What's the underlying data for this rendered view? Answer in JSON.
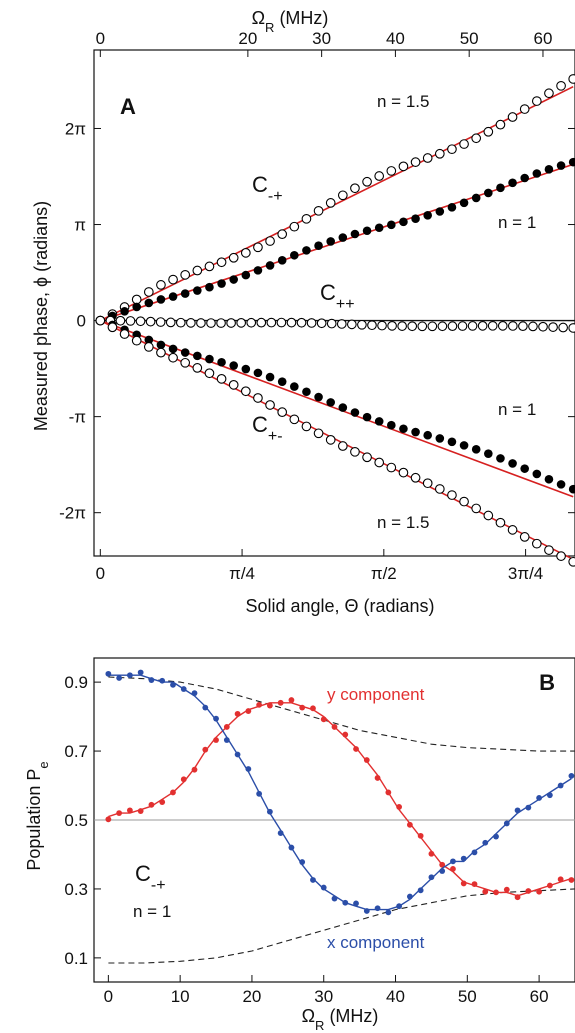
{
  "chart_data": [
    {
      "panel": "A",
      "type": "scatter",
      "top_axis": {
        "label": "Ω_R (MHz)",
        "ticks": [
          {
            "value": 0,
            "label": "0"
          },
          {
            "value": 20,
            "label": "20"
          },
          {
            "value": 30,
            "label": "30"
          },
          {
            "value": 40,
            "label": "40"
          },
          {
            "value": 50,
            "label": "50"
          },
          {
            "value": 60,
            "label": "60"
          }
        ]
      },
      "xlabel": "Solid angle, Θ  (radians)",
      "ylabel": "Measured phase, ϕ  (radians)",
      "xlim": [
        -0.035,
        2.63
      ],
      "ylim": [
        -7.7,
        8.85
      ],
      "x_ticks": [
        {
          "value": 0,
          "label": "0"
        },
        {
          "value": 0.7854,
          "label": "π/4"
        },
        {
          "value": 1.5708,
          "label": "π/2"
        },
        {
          "value": 2.3562,
          "label": "3π/4"
        }
      ],
      "y_ticks": [
        {
          "value": -6.2832,
          "label": "-2π"
        },
        {
          "value": -3.1416,
          "label": "-π"
        },
        {
          "value": 0,
          "label": "0"
        },
        {
          "value": 3.1416,
          "label": "π"
        },
        {
          "value": 6.2832,
          "label": "2π"
        }
      ],
      "grid": false,
      "series": [
        {
          "name": "C-+",
          "n_label": "n = 1.5",
          "marker": "open",
          "slope": 2.95,
          "wobble": 0.18,
          "n_points": 40,
          "fit_slope": 2.92
        },
        {
          "name": "C-+",
          "n_label": "n = 1",
          "marker": "filled",
          "slope": 1.95,
          "wobble": 0.1,
          "n_points": 40,
          "fit_slope": 1.95
        },
        {
          "name": "C++",
          "marker": "open",
          "slope": -0.09,
          "wobble": 0.03,
          "n_points": 48,
          "fit_slope": 0.0
        },
        {
          "name": "C+-",
          "n_label": "n = 1",
          "marker": "filled",
          "slope": -2.07,
          "wobble": 0.1,
          "n_points": 40,
          "fit_slope": -2.2
        },
        {
          "name": "C+-",
          "n_label": "n = 1.5",
          "marker": "open",
          "slope": -2.98,
          "wobble": 0.1,
          "n_points": 40,
          "fit_slope": -2.98
        }
      ],
      "annotations": {
        "C_minus_plus": "C",
        "C_plus_plus": "C",
        "C_plus_minus": "C",
        "sub_mp": "-+",
        "sub_pp": "++",
        "sub_pm": "+-"
      },
      "colors": {
        "fit": "#d62020",
        "points": "#000000"
      }
    },
    {
      "panel": "B",
      "type": "scatter",
      "xlabel": "Ω_R (MHz)",
      "ylabel": "Population P_e",
      "xlim": [
        -2,
        65
      ],
      "ylim": [
        0.03,
        0.97
      ],
      "x_ticks": [
        0,
        10,
        20,
        30,
        40,
        50,
        60
      ],
      "y_ticks": [
        0.1,
        0.3,
        0.5,
        0.7,
        0.9
      ],
      "grid": false,
      "reference_line": 0.5,
      "series": [
        {
          "name": "y component",
          "color": "#e23030",
          "x": [
            0,
            1.5,
            3,
            4.5,
            6,
            7.5,
            9,
            10.5,
            12,
            13.5,
            15,
            16.5,
            18,
            19.5,
            21,
            22.5,
            24,
            25.5,
            27,
            28.5,
            30,
            31.5,
            33,
            34.5,
            36,
            37.5,
            39,
            40.5,
            42,
            43.5,
            45,
            46.5,
            48,
            49.5,
            51,
            52.5,
            54,
            55.5,
            57,
            58.5,
            60,
            61.5,
            63,
            64.5
          ],
          "values": [
            0.51,
            0.52,
            0.52,
            0.53,
            0.54,
            0.56,
            0.58,
            0.61,
            0.65,
            0.7,
            0.74,
            0.77,
            0.8,
            0.82,
            0.83,
            0.84,
            0.84,
            0.84,
            0.83,
            0.82,
            0.8,
            0.77,
            0.74,
            0.71,
            0.67,
            0.63,
            0.58,
            0.53,
            0.49,
            0.45,
            0.41,
            0.37,
            0.35,
            0.32,
            0.31,
            0.3,
            0.29,
            0.29,
            0.28,
            0.29,
            0.3,
            0.31,
            0.32,
            0.33
          ]
        },
        {
          "name": "x component",
          "color": "#2b4ea8",
          "x": [
            0,
            1.5,
            3,
            4.5,
            6,
            7.5,
            9,
            10.5,
            12,
            13.5,
            15,
            16.5,
            18,
            19.5,
            21,
            22.5,
            24,
            25.5,
            27,
            28.5,
            30,
            31.5,
            33,
            34.5,
            36,
            37.5,
            39,
            40.5,
            42,
            43.5,
            45,
            46.5,
            48,
            49.5,
            51,
            52.5,
            54,
            55.5,
            57,
            58.5,
            60,
            61.5,
            63,
            64.5
          ],
          "values": [
            0.92,
            0.92,
            0.92,
            0.92,
            0.91,
            0.9,
            0.9,
            0.88,
            0.86,
            0.83,
            0.79,
            0.74,
            0.69,
            0.64,
            0.58,
            0.52,
            0.47,
            0.42,
            0.37,
            0.33,
            0.3,
            0.28,
            0.26,
            0.25,
            0.24,
            0.24,
            0.24,
            0.25,
            0.27,
            0.3,
            0.33,
            0.36,
            0.38,
            0.38,
            0.41,
            0.43,
            0.46,
            0.49,
            0.52,
            0.54,
            0.56,
            0.58,
            0.6,
            0.62
          ]
        }
      ],
      "envelope_upper": [
        0.915,
        0.91,
        0.9,
        0.88,
        0.85,
        0.82,
        0.79,
        0.76,
        0.74,
        0.72,
        0.71,
        0.705,
        0.7,
        0.7
      ],
      "envelope_lower": [
        0.085,
        0.085,
        0.09,
        0.1,
        0.12,
        0.15,
        0.18,
        0.21,
        0.24,
        0.26,
        0.28,
        0.29,
        0.295,
        0.3
      ],
      "envelope_x": [
        0,
        5,
        10,
        15,
        20,
        25,
        30,
        35,
        40,
        45,
        50,
        55,
        60,
        65
      ],
      "annotations": {
        "curve": "C",
        "curve_sub": "-+",
        "n_label": "n = 1",
        "y_comp": "y component",
        "x_comp": "x component"
      }
    }
  ],
  "labels": {
    "panel_a": "A",
    "panel_b": "B",
    "top_axis_omega": "Ω",
    "top_axis_sub": "R",
    "top_axis_unit": " (MHz)",
    "bottom_axis_omega": "Ω",
    "bottom_axis_sub": "R",
    "bottom_axis_unit": " (MHz)",
    "ylabel_a": "Measured phase, ϕ  (radians)",
    "xlabel_a": "Solid angle, Θ  (radians)",
    "ylabel_b_text": "Population ",
    "ylabel_b_symbol": "P",
    "ylabel_b_sub": "e"
  }
}
